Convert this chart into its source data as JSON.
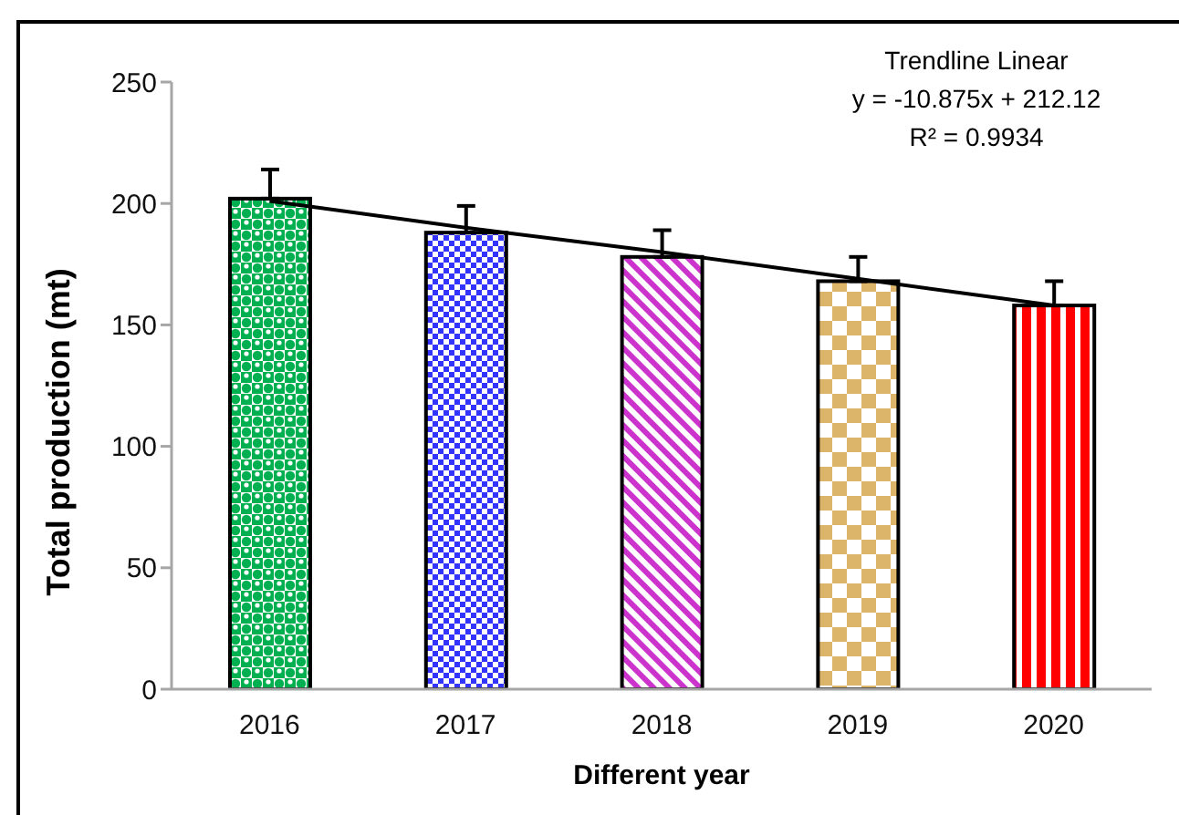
{
  "chart_data": {
    "type": "bar",
    "xlabel": "Different year",
    "ylabel": "Total production (mt)",
    "annotations": [
      "Trendline Linear",
      "y = -10.875x + 212.12",
      "R² = 0.9934"
    ],
    "categories": [
      "2016",
      "2017",
      "2018",
      "2019",
      "2020"
    ],
    "series": [
      {
        "colors": [
          "#00b050",
          "#3333ff",
          "#cc33cc",
          "#dcb46a",
          "#ff0000"
        ],
        "values": [
          202,
          188,
          178,
          168,
          158
        ],
        "errors": [
          [
            202,
            214
          ],
          [
            188,
            199
          ],
          [
            178,
            189
          ],
          [
            168,
            178
          ],
          [
            158,
            168
          ]
        ]
      },
      {
        "type": "line",
        "color": "#000000",
        "values": [
          201,
          190,
          180,
          169,
          158
        ]
      }
    ],
    "ylim": [
      0,
      250
    ],
    "yticks": [
      0,
      50,
      100,
      150,
      200,
      250
    ]
  }
}
